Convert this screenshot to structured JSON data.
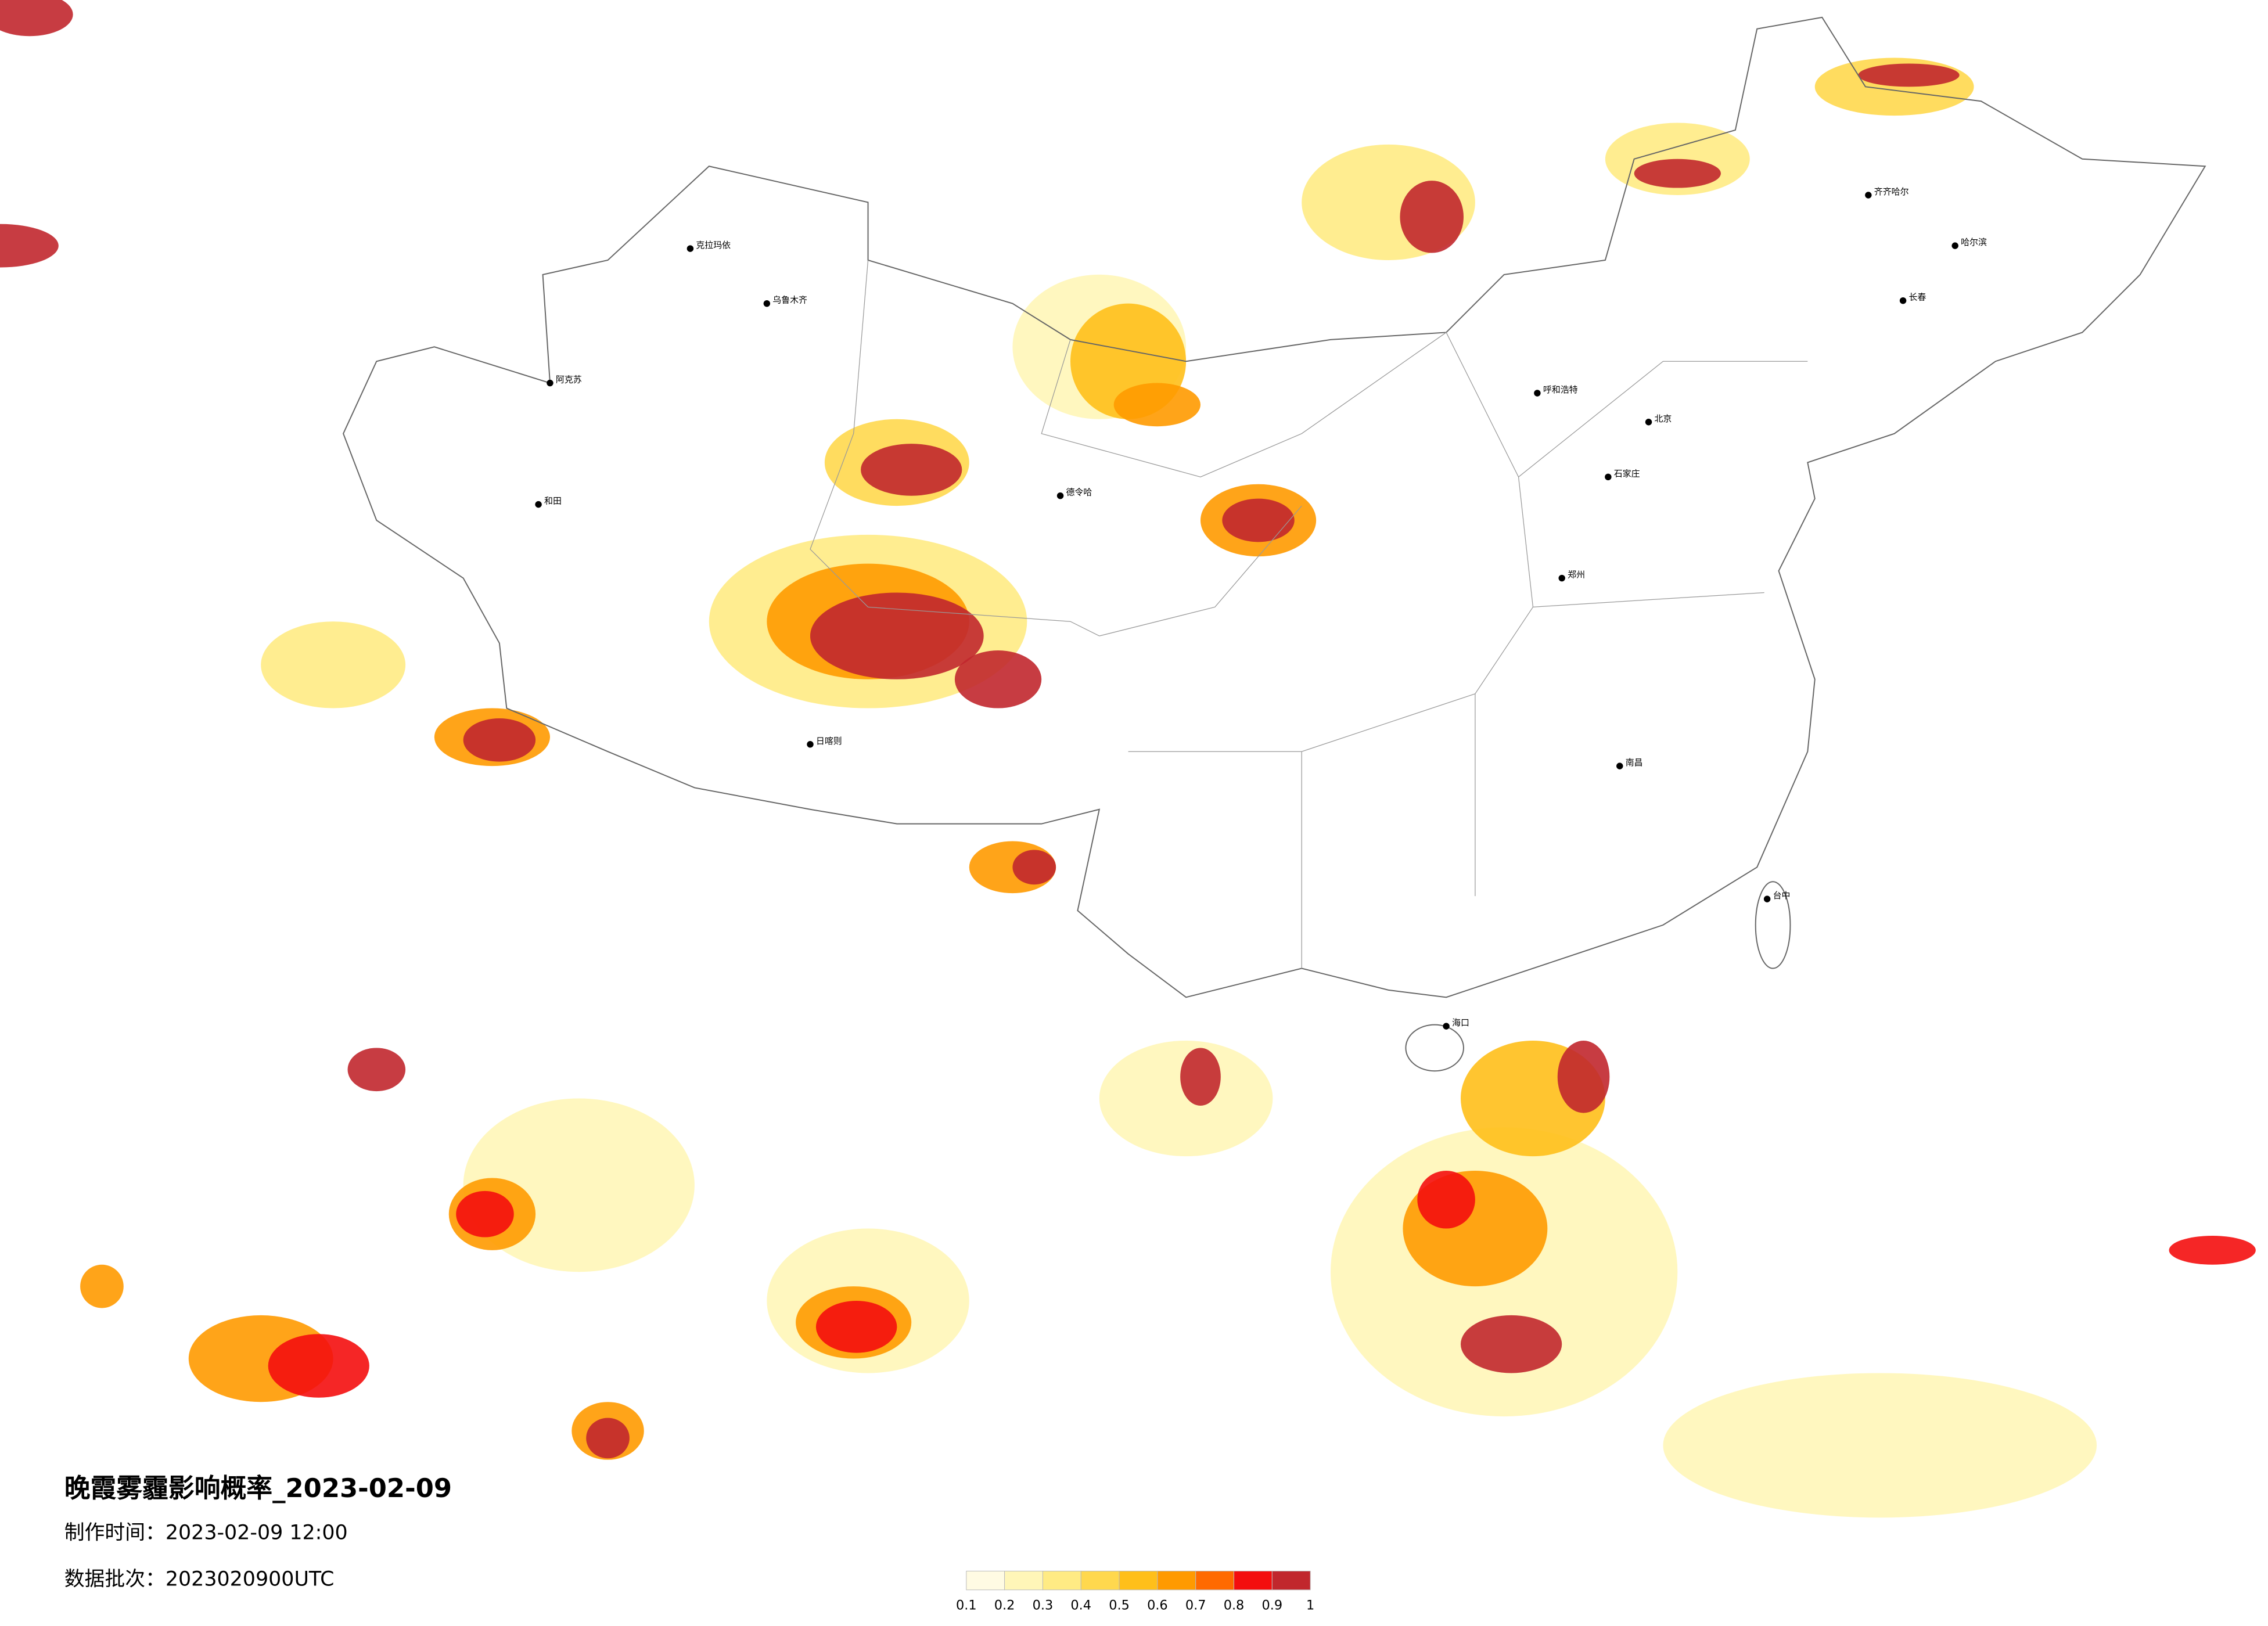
{
  "title": "晚霞雾霾影响概率_2023-02-09",
  "made_time": "制作时间：2023-02-09 12:00",
  "data_batch": "数据批次：2023020900UTC",
  "legend": {
    "ticks": [
      0.1,
      0.2,
      0.3,
      0.4,
      0.5,
      0.6,
      0.7,
      0.8,
      0.9,
      1
    ],
    "colors": [
      "#fffbe3",
      "#fff6b8",
      "#ffeb84",
      "#ffd84e",
      "#ffbf1a",
      "#ff9a00",
      "#ff6a00",
      "#f40e0e",
      "#c1272d"
    ]
  },
  "cities": [
    "克拉玛依",
    "乌鲁木齐",
    "阿克苏",
    "和田",
    "日喀则",
    "德令哈",
    "呼和浩特",
    "北京",
    "石家庄",
    "郑州",
    "南昌",
    "齐齐哈尔",
    "哈尔滨",
    "长春",
    "海口",
    "台中"
  ]
}
